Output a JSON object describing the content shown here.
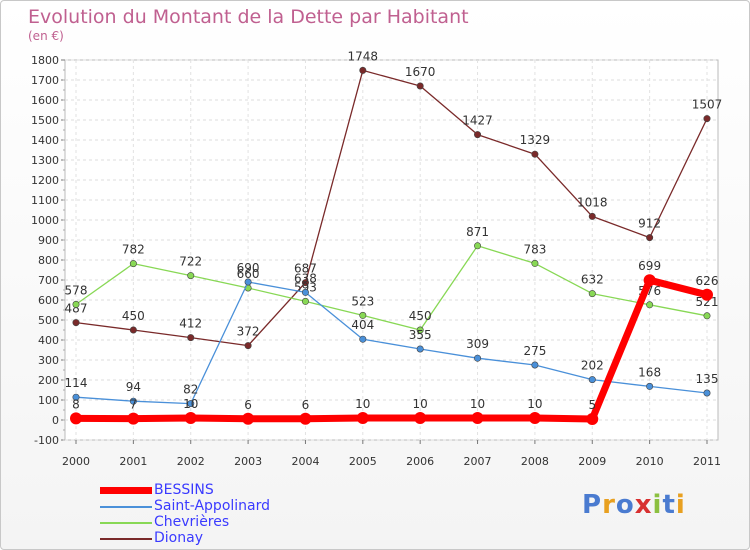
{
  "title": "Evolution du Montant de la Dette par Habitant",
  "subtitle": "(en €)",
  "logo_text": "Proxiti",
  "chart_data": {
    "type": "line",
    "categories": [
      "2000",
      "2001",
      "2002",
      "2003",
      "2004",
      "2005",
      "2006",
      "2007",
      "2008",
      "2009",
      "2010",
      "2011"
    ],
    "ylim": [
      -100,
      1800
    ],
    "yticks": [
      -100,
      0,
      100,
      200,
      300,
      400,
      500,
      600,
      700,
      800,
      900,
      1000,
      1100,
      1200,
      1300,
      1400,
      1500,
      1600,
      1700,
      1800
    ],
    "grid": true,
    "legend_position": "bottom-left",
    "series": [
      {
        "name": "BESSINS",
        "color": "#ff0000",
        "values": [
          8,
          7,
          10,
          6,
          6,
          10,
          10,
          10,
          10,
          5,
          699,
          626
        ]
      },
      {
        "name": "Saint-Appolinard",
        "color": "#4a90d9",
        "values": [
          114,
          94,
          82,
          690,
          638,
          404,
          355,
          309,
          275,
          202,
          168,
          135
        ]
      },
      {
        "name": "Chevrières",
        "color": "#88d855",
        "values": [
          578,
          782,
          722,
          660,
          593,
          523,
          450,
          871,
          783,
          632,
          576,
          521
        ]
      },
      {
        "name": "Dionay",
        "color": "#7a2a2a",
        "values": [
          487,
          450,
          412,
          372,
          687,
          1748,
          1670,
          1427,
          1329,
          1018,
          912,
          1507
        ]
      }
    ]
  }
}
